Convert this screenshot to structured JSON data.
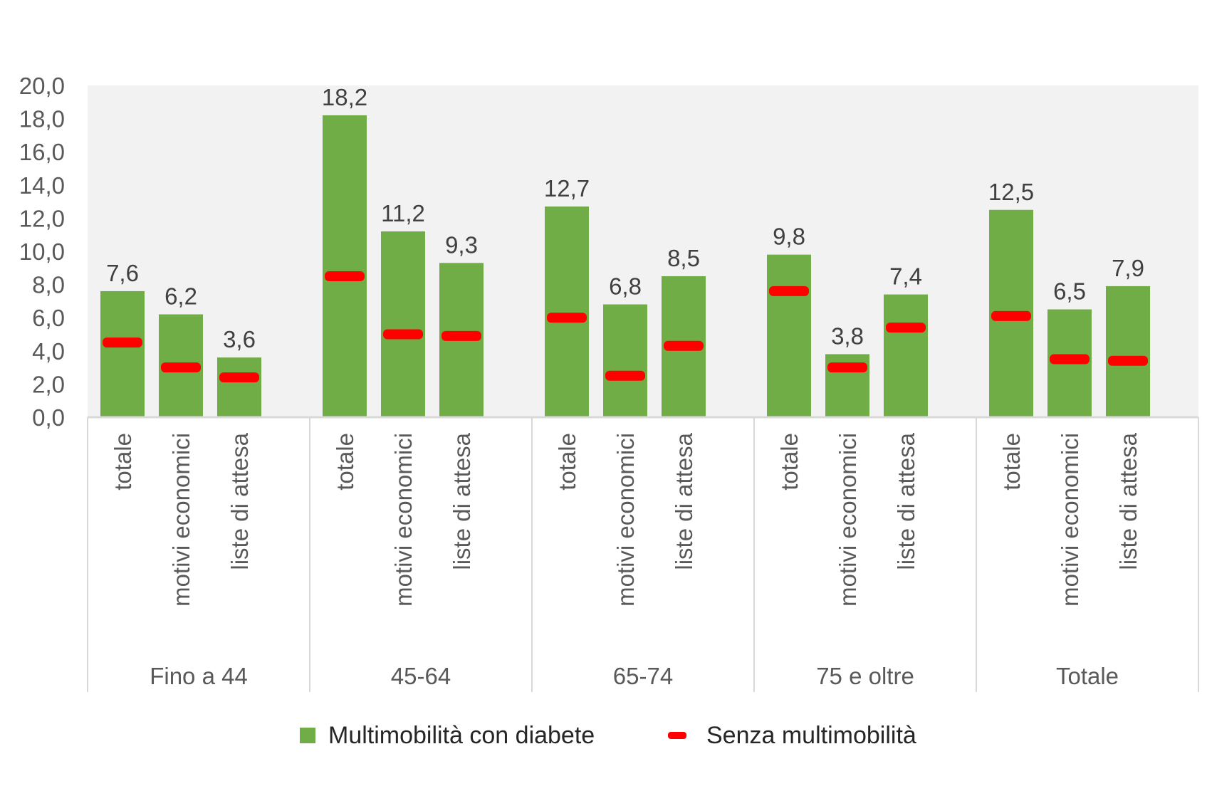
{
  "chart_data": {
    "type": "bar",
    "ylim": [
      0,
      20
    ],
    "yticks": [
      "0,0",
      "2,0",
      "4,0",
      "6,0",
      "8,0",
      "10,0",
      "12,0",
      "14,0",
      "16,0",
      "18,0",
      "20,0"
    ],
    "groups": [
      "Fino a 44",
      "45-64",
      "65-74",
      "75 e oltre",
      "Totale"
    ],
    "subcategories": [
      "totale",
      "motivi economici",
      "liste di attesa"
    ],
    "series": [
      {
        "name": "Multimobilità con diabete",
        "type": "bar",
        "color": "#70ad47",
        "values": [
          7.6,
          6.2,
          3.6,
          18.2,
          11.2,
          9.3,
          12.7,
          6.8,
          8.5,
          9.8,
          3.8,
          7.4,
          12.5,
          6.5,
          7.9
        ],
        "labels": [
          "7,6",
          "6,2",
          "3,6",
          "18,2",
          "11,2",
          "9,3",
          "12,7",
          "6,8",
          "8,5",
          "9,8",
          "3,8",
          "7,4",
          "12,5",
          "6,5",
          "7,9"
        ]
      },
      {
        "name": "Senza multimobilità",
        "type": "marker",
        "color": "#ff0000",
        "values": [
          4.5,
          3.0,
          2.4,
          8.5,
          5.0,
          4.9,
          6.0,
          2.5,
          4.3,
          7.6,
          3.0,
          5.4,
          6.1,
          3.5,
          3.4
        ]
      }
    ],
    "legend": "bottom",
    "grid": false
  }
}
